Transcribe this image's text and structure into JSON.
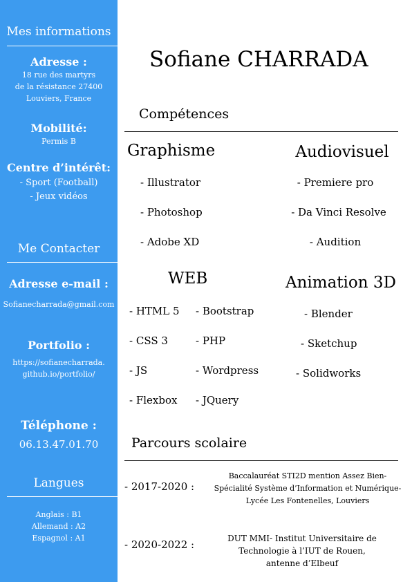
{
  "sidebar": {
    "info_title": "Mes informations",
    "address_label": "Adresse :",
    "address_lines": [
      "18 rue des martyrs",
      "de la résistance 27400",
      "Louviers, France"
    ],
    "mobility_label": "Mobilité:",
    "mobility_value": "Permis B",
    "interests_label": "Centre d’intérêt:",
    "interests": [
      "- Sport (Football)",
      "- Jeux vidéos"
    ],
    "contact_title": "Me Contacter",
    "email_label": "Adresse e-mail :",
    "email_value": "Sofianecharrada@gmail.com",
    "portfolio_label": "Portfolio :",
    "portfolio_lines": [
      "https://sofianecharrada.",
      "github.io/portfolio/"
    ],
    "phone_label": "Téléphone :",
    "phone_value": "06.13.47.01.70",
    "languages_title": "Langues",
    "languages": [
      "Anglais : B1",
      "Allemand : A2",
      "Espagnol : A1"
    ]
  },
  "main": {
    "name": "Sofiane CHARRADA",
    "skills_title": "Compétences",
    "graphisme": {
      "title": "Graphisme",
      "items": [
        "- Illustrator",
        "- Photoshop",
        "- Adobe XD"
      ]
    },
    "audiovisuel": {
      "title": "Audiovisuel",
      "items": [
        "- Premiere pro",
        "- Da Vinci Resolve",
        "- Audition"
      ]
    },
    "web": {
      "title": "WEB",
      "col1": [
        "- HTML 5",
        "- CSS 3",
        "- JS",
        "- Flexbox"
      ],
      "col2": [
        "- Bootstrap",
        "- PHP",
        "- Wordpress",
        "- JQuery"
      ]
    },
    "animation": {
      "title": "Animation 3D",
      "items": [
        "- Blender",
        "- Sketchup",
        "- Solidworks"
      ]
    },
    "education_title": "Parcours scolaire",
    "education": [
      {
        "period": "- 2017-2020 :",
        "lines": [
          "Baccalauréat STI2D mention Assez Bien-",
          "Spécialité Système d’Information et Numérique-",
          "Lycée Les Fontenelles, Louviers"
        ]
      },
      {
        "period": "- 2020-2022 :",
        "lines": [
          "DUT MMI- Institut Universitaire de",
          "Technologie à l’IUT de Rouen,",
          "antenne d’Elbeuf"
        ]
      }
    ]
  },
  "colors": {
    "sidebar": "#3d9bef",
    "sidebar_text": "#ffffff"
  }
}
